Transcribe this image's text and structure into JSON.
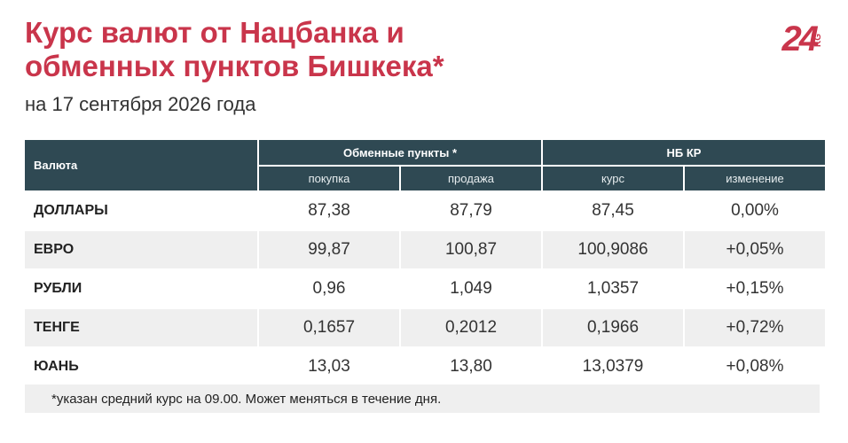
{
  "header": {
    "title_line1": "Курс валют от Нацбанка и",
    "title_line2": "обменных пунктов Бишкека*",
    "subtitle": "на 17 сентября 2026 года",
    "logo_main": "24",
    "logo_sub": "KG"
  },
  "table": {
    "header": {
      "currency": "Валюта",
      "exchange": "Обменные пункты *",
      "nbkr": "НБ КР"
    },
    "subheader": [
      "покупка",
      "продажа",
      "курс",
      "изменение"
    ],
    "rows": [
      [
        "ДОЛЛАРЫ",
        "87,38",
        "87,79",
        "87,45",
        "0,00%"
      ],
      [
        "ЕВРО",
        "99,87",
        "100,87",
        "100,9086",
        "+0,05%"
      ],
      [
        "РУБЛИ",
        "0,96",
        "1,049",
        "1,0357",
        "+0,15%"
      ],
      [
        "ТЕНГЕ",
        "0,1657",
        "0,2012",
        "0,1966",
        "+0,72%"
      ],
      [
        "ЮАНЬ",
        "13,03",
        "13,80",
        "13,0379",
        "+0,08%"
      ]
    ]
  },
  "footnote": "*указан средний курс на 09.00. Может меняться в течение дня."
}
